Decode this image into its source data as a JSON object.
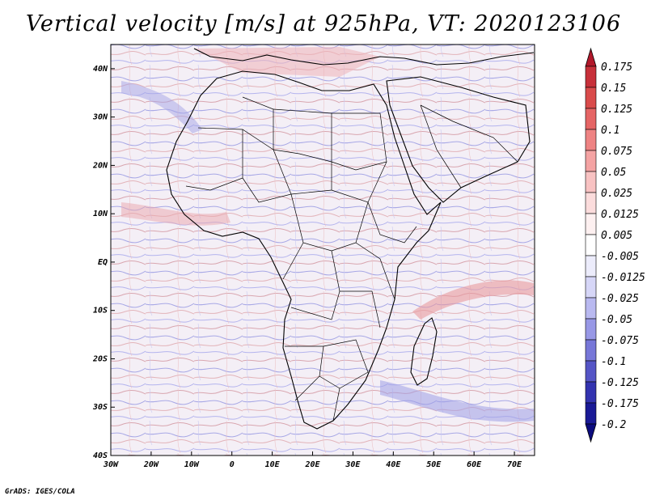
{
  "title": "Vertical velocity [m/s] at 925hPa, VT: 2020123106",
  "credit": "GrADS: IGES/COLA",
  "map": {
    "lon_range": [
      -30,
      75
    ],
    "lat_range": [
      -40,
      45
    ],
    "lat_labels": [
      "40N",
      "30N",
      "20N",
      "10N",
      "EQ",
      "10S",
      "20S",
      "30S",
      "40S"
    ],
    "lat_values": [
      40,
      30,
      20,
      10,
      0,
      -10,
      -20,
      -30,
      -40
    ],
    "lon_labels": [
      "30W",
      "20W",
      "10W",
      "0",
      "10E",
      "20E",
      "30E",
      "40E",
      "50E",
      "60E",
      "70E"
    ],
    "lon_values": [
      -30,
      -20,
      -10,
      0,
      10,
      20,
      30,
      40,
      50,
      60,
      70
    ]
  },
  "colorbar": {
    "labels": [
      "0.175",
      "0.15",
      "0.125",
      "0.1",
      "0.075",
      "0.05",
      "0.025",
      "0.0125",
      "0.005",
      "-0.005",
      "-0.0125",
      "-0.025",
      "-0.05",
      "-0.075",
      "-0.1",
      "-0.125",
      "-0.175",
      "-0.2"
    ],
    "colors": [
      "#b2182b",
      "#c7303a",
      "#d94b4b",
      "#e56565",
      "#ee8383",
      "#f4a3a3",
      "#f8c2c2",
      "#fbdcdc",
      "#fdf0f0",
      "#ffffff",
      "#ececfb",
      "#d6d6f7",
      "#b9b9f0",
      "#9898e6",
      "#7777d8",
      "#5555c6",
      "#3333b0",
      "#1a1a96",
      "#0b0b7e"
    ]
  }
}
